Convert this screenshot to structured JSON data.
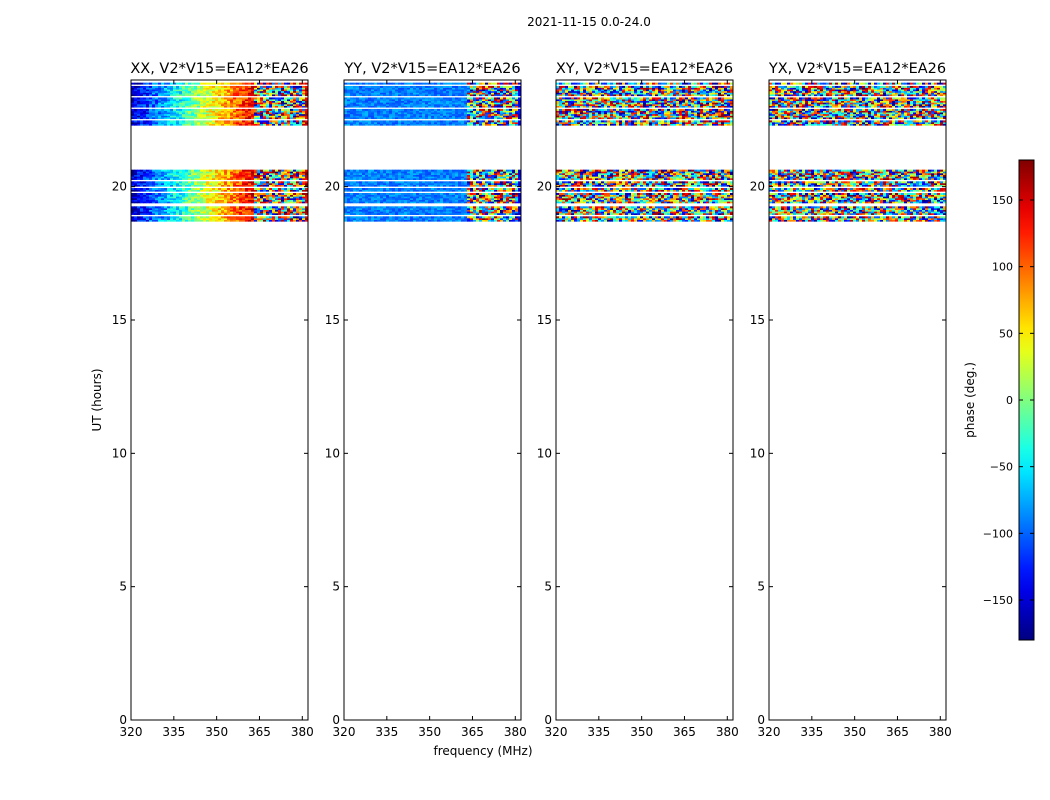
{
  "figure": {
    "suptitle": "2021-11-15 0.0-24.0",
    "ylabel": "UT (hours)",
    "xlabel": "frequency (MHz)",
    "colorbar_label": "phase (deg.)"
  },
  "chart_data": {
    "type": "heatmap",
    "x_range": [
      320,
      382
    ],
    "y_range": [
      0,
      24
    ],
    "x_ticks": [
      320,
      335,
      350,
      365,
      380
    ],
    "y_ticks": [
      0,
      5,
      10,
      15,
      20
    ],
    "colorbar": {
      "range": [
        -180,
        180
      ],
      "ticks": [
        -150,
        -100,
        -50,
        0,
        50,
        100,
        150
      ]
    },
    "time_blocks": [
      {
        "start": 22.3,
        "end": 23.9
      },
      {
        "start": 18.7,
        "end": 20.7
      }
    ],
    "panels": [
      {
        "title": "XX, V2*V15=EA12*EA26",
        "pattern": "xx"
      },
      {
        "title": "YY, V2*V15=EA12*EA26",
        "pattern": "yy"
      },
      {
        "title": "XY, V2*V15=EA12*EA26",
        "pattern": "noise"
      },
      {
        "title": "YX, V2*V15=EA12*EA26",
        "pattern": "noise"
      }
    ]
  }
}
